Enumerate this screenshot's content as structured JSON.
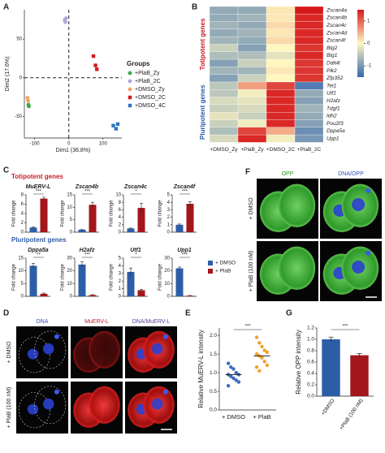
{
  "panel_labels": [
    "A",
    "B",
    "C",
    "D",
    "E",
    "F",
    "G"
  ],
  "micrographs": {
    "D": {
      "columns": [
        "DNA",
        "MuERV-L",
        "DNA/MuERV-L"
      ],
      "rows": [
        "+ DMSO",
        "+ PlaB (100 nM)"
      ]
    },
    "F": {
      "columns": [
        "OPP",
        "DNA/OPP"
      ],
      "rows": [
        "+ DMSO",
        "+ PlaB (100 nM)"
      ]
    }
  },
  "chart_data": [
    {
      "type": "scatter",
      "xlabel": "Dim1 (36.8%)",
      "ylabel": "Dim2 (17.6%)",
      "xlim": [
        -130,
        155
      ],
      "xticks": [
        -100,
        0,
        100
      ],
      "ylim": [
        -78,
        88
      ],
      "yticks": [
        -50,
        0,
        50
      ],
      "zero_lines": true,
      "legend_title": "Groups",
      "series": [
        {
          "name": "+PlaB_Zy",
          "color": "#3aaa48",
          "marker": "circle",
          "x": [
            -118,
            -117
          ],
          "values": [
            -35,
            -37
          ]
        },
        {
          "name": "+PlaB_2C",
          "color": "#b2a6d8",
          "marker": "circle",
          "x": [
            -12,
            -8,
            -10
          ],
          "values": [
            75,
            77,
            72
          ]
        },
        {
          "name": "+DMSO_Zy",
          "color": "#f4a460",
          "marker": "circle",
          "x": [
            -121,
            -119
          ],
          "values": [
            -26,
            -30
          ]
        },
        {
          "name": "+DMSO_2C",
          "color": "#d7191c",
          "marker": "square",
          "x": [
            72,
            78,
            82
          ],
          "values": [
            28,
            16,
            11
          ]
        },
        {
          "name": "+DMSO_4C",
          "color": "#2f74c0",
          "marker": "square",
          "x": [
            130,
            138,
            143
          ],
          "values": [
            -62,
            -66,
            -60
          ]
        }
      ]
    },
    {
      "type": "heatmap",
      "categories": [
        "+DMSO_Zy",
        "+PlaB_Zy",
        "+DMSO_2C",
        "+PlaB_2C"
      ],
      "zlim": [
        -1.5,
        1.5
      ],
      "colors": [
        "#3569b0",
        "#fff6c0",
        "#d7191c"
      ],
      "colorbar_ticks": [
        -1,
        0,
        1
      ],
      "row_groups": [
        {
          "title": "Totipotent genes",
          "color": "#c8202a",
          "rows": [
            {
              "name": "Zscan4a",
              "values": [
                -0.8,
                -0.8,
                0.1,
                1.5
              ]
            },
            {
              "name": "Zscan4b",
              "values": [
                -0.8,
                -0.7,
                0.1,
                1.4
              ]
            },
            {
              "name": "Zscan4c",
              "values": [
                -0.7,
                -0.8,
                0.2,
                1.4
              ]
            },
            {
              "name": "Zscan4d",
              "values": [
                -0.8,
                -0.7,
                0.1,
                1.4
              ]
            },
            {
              "name": "Zscan4f",
              "values": [
                -0.7,
                -0.8,
                0.2,
                1.4
              ]
            },
            {
              "name": "Btg2",
              "values": [
                -0.4,
                -0.9,
                0.0,
                1.3
              ]
            },
            {
              "name": "Btg1",
              "values": [
                -0.6,
                -0.6,
                -0.2,
                1.4
              ]
            },
            {
              "name": "Ddit4l",
              "values": [
                -0.9,
                -0.4,
                0.0,
                1.3
              ]
            },
            {
              "name": "Plk2",
              "values": [
                -0.7,
                -0.7,
                0.1,
                1.3
              ]
            },
            {
              "name": "Zfp352",
              "values": [
                -0.9,
                -0.4,
                0.0,
                1.3
              ]
            }
          ]
        },
        {
          "title": "Pluripotent genes",
          "color": "#2f5ea8",
          "rows": [
            {
              "name": "Tet1",
              "values": [
                -0.5,
                0.6,
                1.2,
                -1.3
              ]
            },
            {
              "name": "Utf1",
              "values": [
                -0.5,
                -0.1,
                1.4,
                -0.8
              ]
            },
            {
              "name": "H2afz",
              "values": [
                -0.3,
                -0.2,
                1.4,
                -0.9
              ]
            },
            {
              "name": "Tdgf1",
              "values": [
                -0.4,
                -0.3,
                1.4,
                -0.7
              ]
            },
            {
              "name": "Idh2",
              "values": [
                -0.2,
                -0.4,
                1.4,
                -0.8
              ]
            },
            {
              "name": "Pou2f3",
              "values": [
                -0.4,
                -0.1,
                1.4,
                -0.9
              ]
            },
            {
              "name": "Dppa5a",
              "values": [
                -0.6,
                1.2,
                0.5,
                -1.1
              ]
            },
            {
              "name": "Upp1",
              "values": [
                -0.3,
                1.4,
                -0.1,
                -1.0
              ]
            }
          ]
        }
      ]
    },
    {
      "type": "bar-panels",
      "series": [
        {
          "name": "+ DMSO",
          "color": "#2e5da8"
        },
        {
          "name": "+ PlaB",
          "color": "#a3161c"
        }
      ],
      "groups": [
        {
          "title": "Totipotent genes",
          "color": "#c8202a",
          "panels": [
            {
              "title": "MuERV-L",
              "ylabel": "Fold change",
              "ylim": [
                0,
                8
              ],
              "yticks": [
                0,
                2,
                4,
                6,
                8
              ],
              "values": [
                1,
                7.2
              ],
              "errors": [
                0.1,
                0.3
              ],
              "significance": "***"
            },
            {
              "title": "Zscan4b",
              "ylabel": "Fold change",
              "ylim": [
                0,
                15
              ],
              "yticks": [
                0,
                5,
                10,
                15
              ],
              "values": [
                1,
                11
              ],
              "errors": [
                0.1,
                1.0
              ],
              "significance": "***"
            },
            {
              "title": "Zscan4c",
              "ylabel": "Fold change",
              "ylim": [
                0,
                10
              ],
              "yticks": [
                0,
                2,
                4,
                6,
                8,
                10
              ],
              "values": [
                1,
                6.5
              ],
              "errors": [
                0.1,
                1.2
              ],
              "significance": "*"
            },
            {
              "title": "Zscan4f",
              "ylabel": "Fold change",
              "ylim": [
                0,
                5
              ],
              "yticks": [
                0,
                1,
                2,
                3,
                4,
                5
              ],
              "values": [
                1,
                3.8
              ],
              "errors": [
                0.1,
                0.3
              ],
              "significance": "***"
            }
          ]
        },
        {
          "title": "Pluripotent genes",
          "color": "#2f5ea8",
          "panels": [
            {
              "title": "Dppa5a",
              "ylabel": "Fold change",
              "ylim": [
                0,
                15
              ],
              "yticks": [
                0,
                5,
                10,
                15
              ],
              "values": [
                12,
                1
              ],
              "errors": [
                1.0,
                0.3
              ],
              "significance": "**"
            },
            {
              "title": "H2afz",
              "ylabel": "Fold change",
              "ylim": [
                0,
                30
              ],
              "yticks": [
                0,
                10,
                20,
                30
              ],
              "values": [
                25,
                1
              ],
              "errors": [
                2.0,
                0.3
              ],
              "significance": "***"
            },
            {
              "title": "Utf1",
              "ylabel": "Fold change",
              "ylim": [
                0,
                5
              ],
              "yticks": [
                0,
                1,
                2,
                3,
                4,
                5
              ],
              "values": [
                3.2,
                0.8
              ],
              "errors": [
                0.5,
                0.1
              ],
              "significance": "*"
            },
            {
              "title": "Upp1",
              "ylabel": "Fold change",
              "ylim": [
                0,
                30
              ],
              "yticks": [
                0,
                10,
                20,
                30
              ],
              "values": [
                22,
                0.5
              ],
              "errors": [
                1.0,
                0.2
              ],
              "significance": "***"
            }
          ]
        }
      ]
    },
    {
      "type": "dot",
      "ylabel": "Relative MuERV-L intensity",
      "ylim": [
        0,
        2.2
      ],
      "yticks": [
        {
          "value": 0,
          "label": "0.0"
        },
        0.5,
        {
          "value": 1,
          "label": "1.0"
        },
        1.5,
        {
          "value": 2,
          "label": "2.0"
        }
      ],
      "significance": "***",
      "series": [
        {
          "name": "+ DMSO",
          "color": "#3d6cc0",
          "values": [
            1.25,
            1.15,
            1.1,
            1.0,
            0.95,
            0.95,
            0.9,
            0.85,
            0.8,
            0.75,
            0.65
          ],
          "mean": 0.95
        },
        {
          "name": "+ PlaB",
          "color": "#f0a030",
          "values": [
            1.95,
            1.8,
            1.7,
            1.6,
            1.55,
            1.5,
            1.45,
            1.4,
            1.3,
            1.2,
            1.15,
            1.05
          ],
          "mean": 1.45
        }
      ]
    },
    {
      "type": "bar",
      "ylabel": "Relative OPP intensity",
      "categories": [
        "+DMSO",
        "+PlaB (100 nM)"
      ],
      "values": [
        1.0,
        0.72
      ],
      "errors": [
        0.04,
        0.03
      ],
      "colors": [
        "#2e5da8",
        "#a3161c"
      ],
      "significance": "***",
      "ylim": [
        0,
        1.2
      ],
      "yticks": [
        {
          "value": 0,
          "label": "0.0"
        },
        0.2,
        0.4,
        0.6,
        0.8,
        {
          "value": 1,
          "label": "1.0"
        },
        1.2
      ]
    }
  ]
}
